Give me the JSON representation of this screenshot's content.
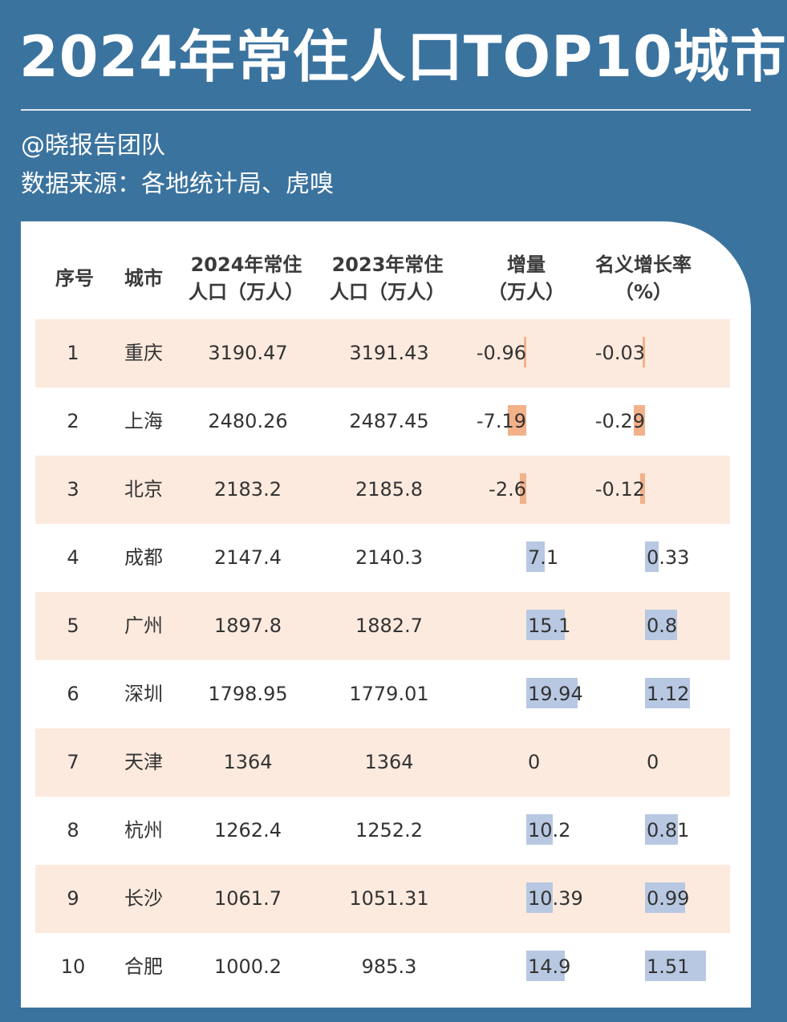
{
  "header": {
    "title": "2024年常住人口TOP10城市",
    "author": "@晓报告团队",
    "source": "数据来源：各地统计局、虎嗅"
  },
  "table": {
    "columns": [
      "序号",
      "城市",
      "2024年常住\n人口（万人）",
      "2023年常住\n人口（万人）",
      "增量\n（万人）",
      "名义增长率\n（%）"
    ]
  },
  "colors": {
    "background": "#3b739f",
    "row_shade": "#fdeade",
    "bar_positive": "#b8c8e2",
    "bar_negative": "#f3b18a"
  },
  "chart_data": {
    "type": "table",
    "rows": [
      {
        "rank": "1",
        "city": "重庆",
        "pop2024": "3190.47",
        "pop2023": "3191.43",
        "increase": "-0.96",
        "growth": "-0.03"
      },
      {
        "rank": "2",
        "city": "上海",
        "pop2024": "2480.26",
        "pop2023": "2487.45",
        "increase": "-7.19",
        "growth": "-0.29"
      },
      {
        "rank": "3",
        "city": "北京",
        "pop2024": "2183.2",
        "pop2023": "2185.8",
        "increase": "-2.6",
        "growth": "-0.12"
      },
      {
        "rank": "4",
        "city": "成都",
        "pop2024": "2147.4",
        "pop2023": "2140.3",
        "increase": "7.1",
        "growth": "0.33"
      },
      {
        "rank": "5",
        "city": "广州",
        "pop2024": "1897.8",
        "pop2023": "1882.7",
        "increase": "15.1",
        "growth": "0.8"
      },
      {
        "rank": "6",
        "city": "深圳",
        "pop2024": "1798.95",
        "pop2023": "1779.01",
        "increase": "19.94",
        "growth": "1.12"
      },
      {
        "rank": "7",
        "city": "天津",
        "pop2024": "1364",
        "pop2023": "1364",
        "increase": "0",
        "growth": "0"
      },
      {
        "rank": "8",
        "city": "杭州",
        "pop2024": "1262.4",
        "pop2023": "1252.2",
        "increase": "10.2",
        "growth": "0.81"
      },
      {
        "rank": "9",
        "city": "长沙",
        "pop2024": "1061.7",
        "pop2023": "1051.31",
        "increase": "10.39",
        "growth": "0.99"
      },
      {
        "rank": "10",
        "city": "合肥",
        "pop2024": "1000.2",
        "pop2023": "985.3",
        "increase": "14.9",
        "growth": "1.51"
      }
    ]
  }
}
